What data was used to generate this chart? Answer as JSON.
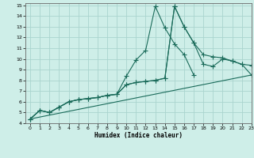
{
  "xlabel": "Humidex (Indice chaleur)",
  "xlim": [
    -0.5,
    23
  ],
  "ylim": [
    4,
    15.2
  ],
  "yticks": [
    4,
    5,
    6,
    7,
    8,
    9,
    10,
    11,
    12,
    13,
    14,
    15
  ],
  "xticks": [
    0,
    1,
    2,
    3,
    4,
    5,
    6,
    7,
    8,
    9,
    10,
    11,
    12,
    13,
    14,
    15,
    16,
    17,
    18,
    19,
    20,
    21,
    22,
    23
  ],
  "bg_color": "#ceeee8",
  "grid_color": "#aad4ce",
  "line_color": "#1a6b5a",
  "line1_x": [
    0,
    1,
    2,
    3,
    4,
    5,
    6,
    7,
    8,
    9,
    10,
    11,
    12,
    13,
    14,
    15,
    16,
    17
  ],
  "line1_y": [
    4.4,
    5.2,
    5.0,
    5.5,
    6.0,
    6.2,
    6.3,
    6.4,
    6.6,
    6.7,
    8.4,
    9.9,
    10.8,
    14.9,
    12.9,
    11.4,
    10.4,
    8.5
  ],
  "line2_x": [
    0,
    1,
    2,
    3,
    4,
    5,
    6,
    7,
    8,
    9,
    10,
    11,
    12,
    13,
    14,
    15,
    16,
    17,
    18,
    19,
    20,
    21,
    22,
    23
  ],
  "line2_y": [
    4.4,
    5.2,
    5.0,
    5.5,
    6.0,
    6.2,
    6.3,
    6.4,
    6.6,
    6.7,
    7.6,
    7.8,
    7.9,
    8.0,
    8.2,
    14.9,
    13.0,
    11.5,
    10.4,
    10.2,
    10.1,
    9.8,
    9.5,
    8.5
  ],
  "line3_x": [
    0,
    1,
    2,
    3,
    4,
    5,
    6,
    7,
    8,
    9,
    10,
    11,
    12,
    13,
    14,
    15,
    16,
    17,
    18,
    19,
    20,
    21,
    22,
    23
  ],
  "line3_y": [
    4.4,
    5.2,
    5.0,
    5.5,
    6.0,
    6.2,
    6.3,
    6.4,
    6.6,
    6.7,
    7.6,
    7.8,
    7.9,
    8.0,
    8.2,
    14.9,
    13.0,
    11.5,
    9.5,
    9.3,
    10.0,
    9.8,
    9.5,
    9.4
  ],
  "line4_x": [
    0,
    23
  ],
  "line4_y": [
    4.4,
    8.5
  ]
}
